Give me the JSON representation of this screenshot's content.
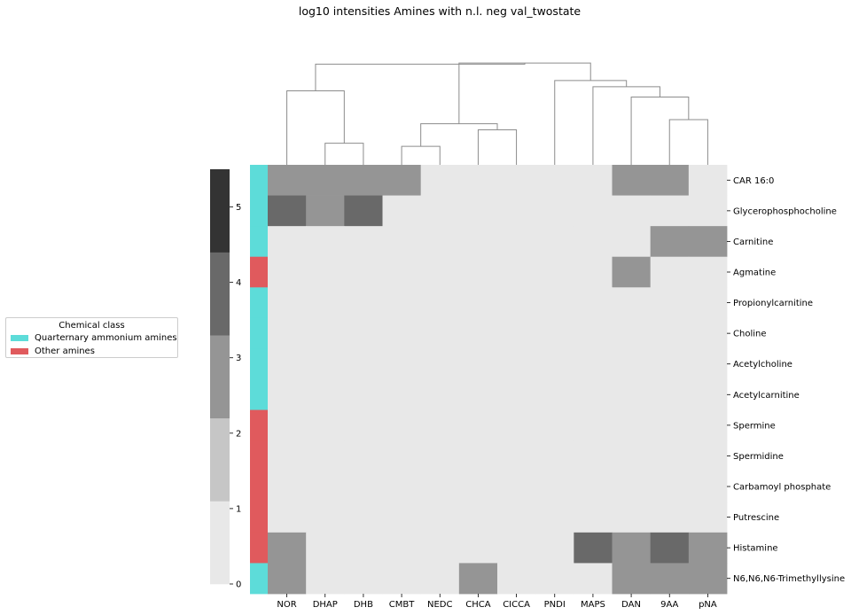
{
  "chart_data": {
    "type": "heatmap",
    "title": "log10 intensities Amines with n.l. neg val_twostate",
    "columns": [
      "NOR",
      "DHAP",
      "DHB",
      "CMBT",
      "NEDC",
      "CHCA",
      "CICCA",
      "PNDI",
      "MAPS",
      "DAN",
      "9AA",
      "pNA"
    ],
    "rows": [
      "CAR 16:0",
      "Glycerophosphocholine",
      "Carnitine",
      "Agmatine",
      "Propionylcarnitine",
      "Choline",
      "Acetylcholine",
      "Acetylcarnitine",
      "Spermine",
      "Spermidine",
      "Carbamoyl phosphate",
      "Putrescine",
      "Histamine",
      "N6,N6,N6-Trimethyllysine"
    ],
    "values": [
      [
        2,
        2,
        2,
        2,
        0,
        0,
        0,
        0,
        0,
        2,
        2,
        0
      ],
      [
        3,
        2,
        3,
        0,
        0,
        0,
        0,
        0,
        0,
        0,
        0,
        0
      ],
      [
        0,
        0,
        0,
        0,
        0,
        0,
        0,
        0,
        0,
        0,
        2,
        2
      ],
      [
        0,
        0,
        0,
        0,
        0,
        0,
        0,
        0,
        0,
        2,
        0,
        0
      ],
      [
        0,
        0,
        0,
        0,
        0,
        0,
        0,
        0,
        0,
        0,
        0,
        0
      ],
      [
        0,
        0,
        0,
        0,
        0,
        0,
        0,
        0,
        0,
        0,
        0,
        0
      ],
      [
        0,
        0,
        0,
        0,
        0,
        0,
        0,
        0,
        0,
        0,
        0,
        0
      ],
      [
        0,
        0,
        0,
        0,
        0,
        0,
        0,
        0,
        0,
        0,
        0,
        0
      ],
      [
        0,
        0,
        0,
        0,
        0,
        0,
        0,
        0,
        0,
        0,
        0,
        0
      ],
      [
        0,
        0,
        0,
        0,
        0,
        0,
        0,
        0,
        0,
        0,
        0,
        0
      ],
      [
        0,
        0,
        0,
        0,
        0,
        0,
        0,
        0,
        0,
        0,
        0,
        0
      ],
      [
        0,
        0,
        0,
        0,
        0,
        0,
        0,
        0,
        0,
        0,
        0,
        0
      ],
      [
        2,
        0,
        0,
        0,
        0,
        0,
        0,
        0,
        3,
        2,
        3,
        2
      ],
      [
        2,
        0,
        0,
        0,
        0,
        2,
        0,
        0,
        0,
        2,
        2,
        2
      ]
    ],
    "row_classes": [
      "Quarternary ammonium amines",
      "Quarternary ammonium amines",
      "Quarternary ammonium amines",
      "Other amines",
      "Quarternary ammonium amines",
      "Quarternary ammonium amines",
      "Quarternary ammonium amines",
      "Quarternary ammonium amines",
      "Other amines",
      "Other amines",
      "Other amines",
      "Other amines",
      "Other amines",
      "Quarternary ammonium amines"
    ],
    "colorbar": {
      "range": [
        0,
        5.5
      ],
      "ticks": [
        "0",
        "1",
        "2",
        "3",
        "4",
        "5"
      ],
      "bins": [
        [
          0,
          1.1,
          "#e8e8e8"
        ],
        [
          1.1,
          2.2,
          "#c6c6c6"
        ],
        [
          2.2,
          3.3,
          "#959595"
        ],
        [
          3.3,
          4.4,
          "#696969"
        ],
        [
          4.4,
          5.5,
          "#333333"
        ]
      ]
    },
    "level_colors": [
      "#e8e8e8",
      "#c6c6c6",
      "#959595",
      "#696969",
      "#333333"
    ],
    "dendrogram": {
      "merges": [
        {
          "a": 1,
          "b": 2,
          "h": 0.21
        },
        {
          "a": 3,
          "b": 4,
          "h": 0.18
        },
        {
          "a": 5,
          "b": 6,
          "h": 0.34
        },
        {
          "a": 10,
          "b": 11,
          "h": 0.44
        },
        {
          "a": 9,
          "b": "m3",
          "h": 0.66
        },
        {
          "a": 8,
          "b": "m4",
          "h": 0.76
        },
        {
          "a": "m1",
          "b": "m2",
          "h": 0.4
        },
        {
          "a": 0,
          "b": "m0",
          "h": 0.72
        },
        {
          "a": 7,
          "b": "m5",
          "h": 0.82
        },
        {
          "a": "m6",
          "b": "m8",
          "h": 0.99
        },
        {
          "a": "m7",
          "b": "m9",
          "h": 0.98
        }
      ]
    },
    "dendrogram_color": "#8c8c8c",
    "legend": {
      "title": "Chemical class",
      "items": [
        {
          "label": "Quarternary ammonium amines",
          "color": "#5ddcd9"
        },
        {
          "label": "Other amines",
          "color": "#e05a5d"
        }
      ]
    }
  }
}
